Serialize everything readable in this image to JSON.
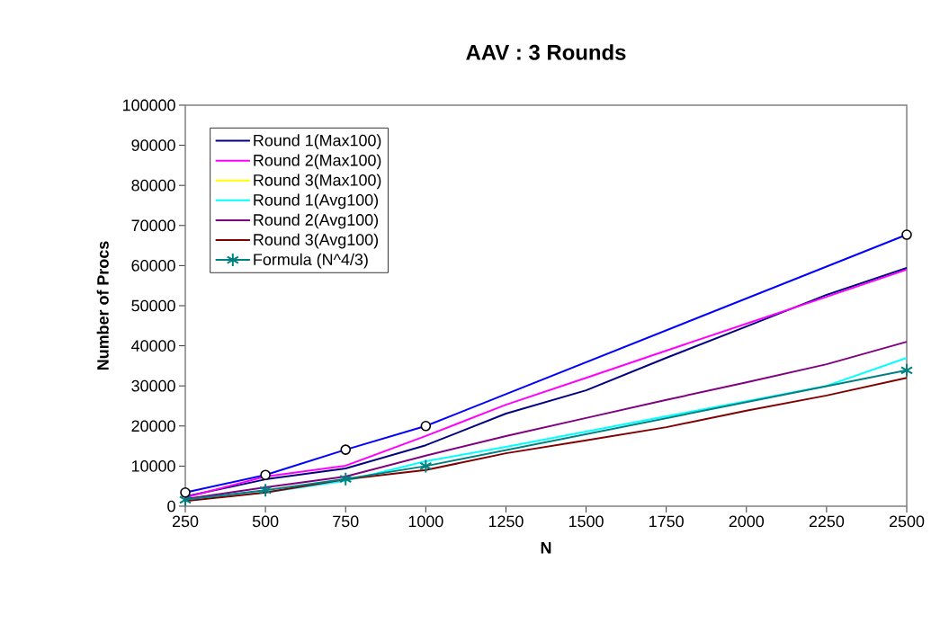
{
  "chart_data": {
    "type": "line",
    "title": "AAV  :  3  Rounds",
    "xlabel": "N",
    "ylabel": "Number  of  Procs",
    "x": [
      250,
      500,
      750,
      1000,
      1250,
      1500,
      1750,
      2000,
      2250,
      2500
    ],
    "xlim": [
      250,
      2500
    ],
    "xticks": [
      250,
      500,
      750,
      1000,
      1250,
      1500,
      1750,
      2000,
      2250,
      2500
    ],
    "ylim": [
      0,
      100000
    ],
    "yticks": [
      0,
      10000,
      20000,
      30000,
      40000,
      50000,
      60000,
      70000,
      80000,
      90000,
      100000
    ],
    "legend": "top left",
    "grid": false,
    "series": [
      {
        "name": "Round  1(Max100)",
        "color": "#000080",
        "marker": "none",
        "values": [
          2400,
          6700,
          9400,
          15200,
          23100,
          28900,
          37000,
          44800,
          52700,
          59400
        ]
      },
      {
        "name": "Round  2(Max100)",
        "color": "#ff00ff",
        "marker": "none",
        "values": [
          2200,
          7400,
          10100,
          17500,
          25300,
          32000,
          38800,
          45500,
          52200,
          59000
        ]
      },
      {
        "name": "Round  3(Max100)",
        "color": "#ffff00",
        "marker": "none",
        "values": [
          null,
          null,
          null,
          null,
          null,
          null,
          null,
          null,
          null,
          null
        ]
      },
      {
        "name": "Round  1(Avg100)",
        "color": "#00ffff",
        "marker": "none",
        "values": [
          1500,
          3400,
          6300,
          11200,
          14800,
          18600,
          22400,
          26200,
          30000,
          37000
        ]
      },
      {
        "name": "Round  2(Avg100)",
        "color": "#800080",
        "marker": "none",
        "values": [
          1800,
          4700,
          7400,
          12600,
          17500,
          22000,
          26500,
          30900,
          35400,
          41000
        ]
      },
      {
        "name": "Round  3(Avg100)",
        "color": "#800000",
        "marker": "none",
        "values": [
          1300,
          3400,
          6700,
          9000,
          13200,
          16400,
          19700,
          23800,
          27600,
          32000
        ]
      },
      {
        "name": "Formula  (N^4/3)",
        "color": "#008080",
        "marker": "cross",
        "x": [
          250,
          500,
          750,
          1000,
          2500
        ],
        "values": [
          1600,
          4000,
          6800,
          10000,
          33900
        ]
      },
      {
        "color": "#0000ff",
        "marker": "circle",
        "x": [
          250,
          500,
          750,
          1000,
          2500
        ],
        "values": [
          3400,
          7800,
          14100,
          20000,
          67700
        ]
      }
    ]
  }
}
